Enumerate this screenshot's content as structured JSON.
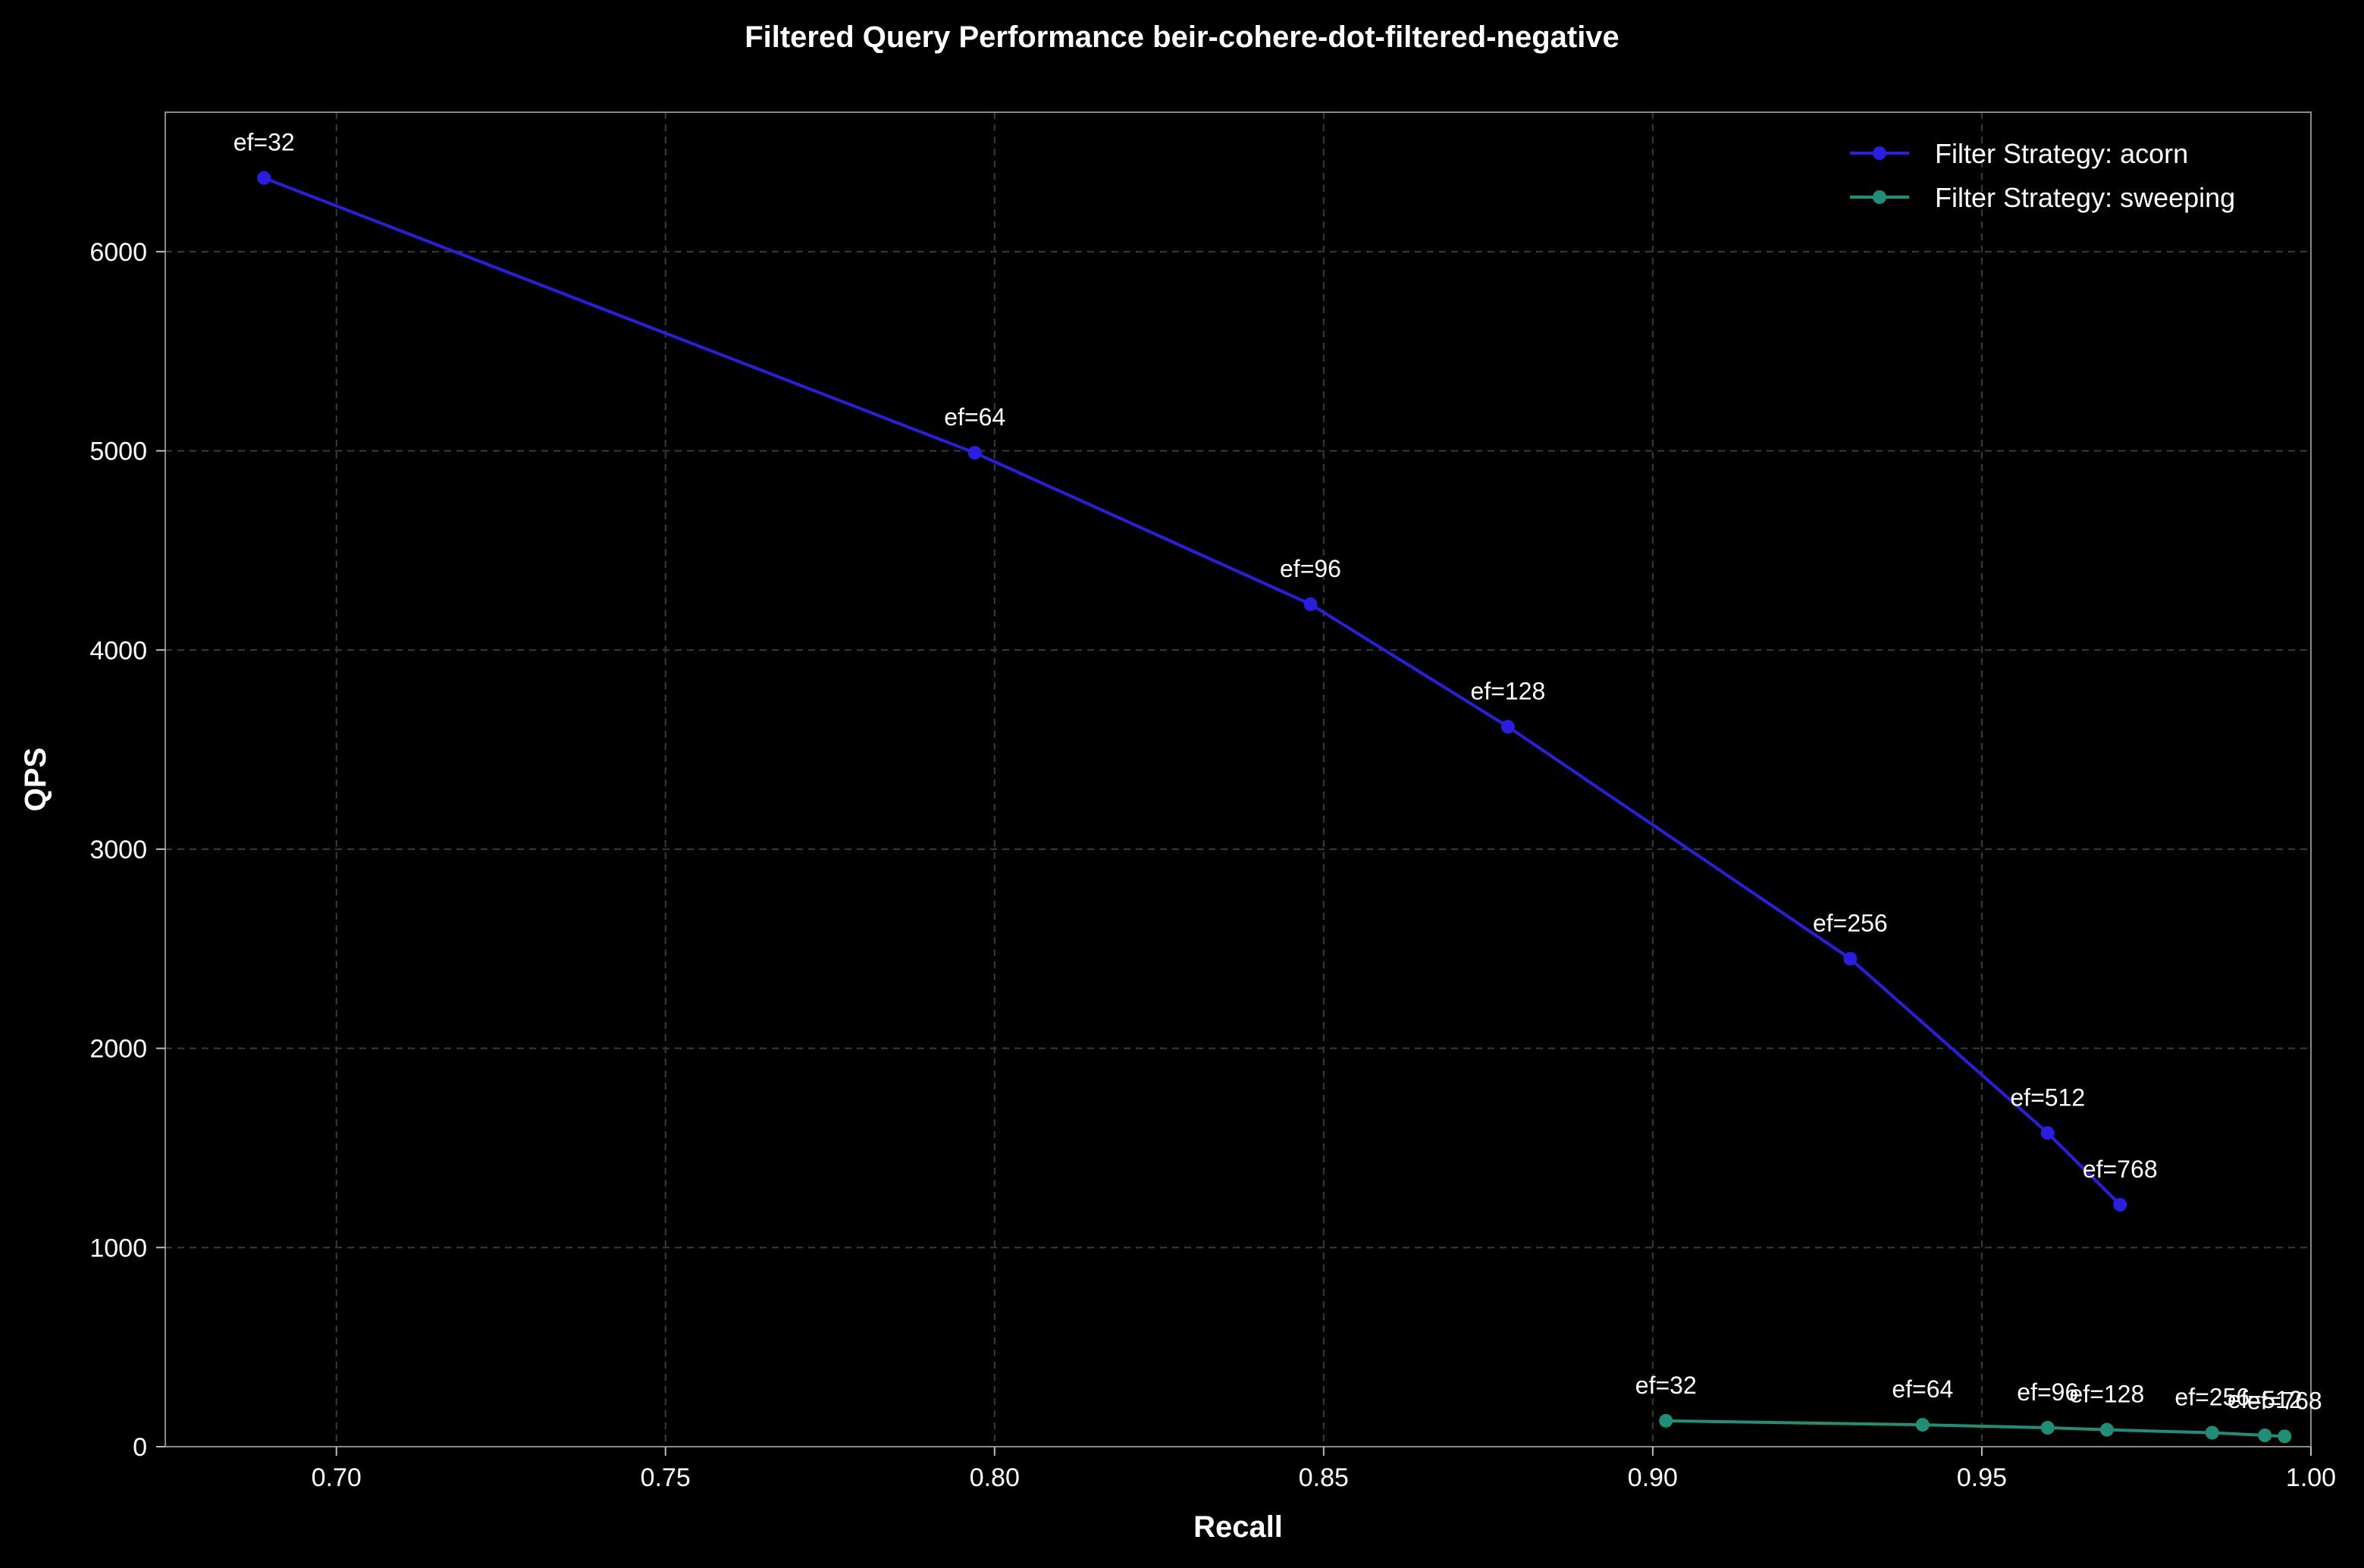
{
  "chart_data": {
    "type": "line",
    "title": "Filtered Query Performance beir-cohere-dot-filtered-negative",
    "xlabel": "Recall",
    "ylabel": "QPS",
    "xlim": [
      0.674,
      1.0
    ],
    "ylim": [
      0,
      6700
    ],
    "xticks": [
      0.7,
      0.75,
      0.8,
      0.85,
      0.9,
      0.95,
      1.0
    ],
    "xtick_labels": [
      "0.70",
      "0.75",
      "0.80",
      "0.85",
      "0.90",
      "0.95",
      "1.00"
    ],
    "yticks": [
      0,
      1000,
      2000,
      3000,
      4000,
      5000,
      6000
    ],
    "ytick_labels": [
      "0",
      "1000",
      "2000",
      "3000",
      "4000",
      "5000",
      "6000"
    ],
    "grid": true,
    "legend_position": "top-right",
    "background": "#000000",
    "series": [
      {
        "name": "Filter Strategy: acorn",
        "color": "#2a1ee0",
        "points": [
          {
            "x": 0.689,
            "y": 6370,
            "label": "ef=32"
          },
          {
            "x": 0.797,
            "y": 4990,
            "label": "ef=64"
          },
          {
            "x": 0.848,
            "y": 4230,
            "label": "ef=96"
          },
          {
            "x": 0.878,
            "y": 3615,
            "label": "ef=128"
          },
          {
            "x": 0.93,
            "y": 2450,
            "label": "ef=256"
          },
          {
            "x": 0.96,
            "y": 1575,
            "label": "ef=512"
          },
          {
            "x": 0.971,
            "y": 1215,
            "label": "ef=768"
          }
        ]
      },
      {
        "name": "Filter Strategy: sweeping",
        "color": "#1f8f78",
        "points": [
          {
            "x": 0.902,
            "y": 130,
            "label": "ef=32"
          },
          {
            "x": 0.941,
            "y": 110,
            "label": "ef=64"
          },
          {
            "x": 0.96,
            "y": 95,
            "label": "ef=96"
          },
          {
            "x": 0.969,
            "y": 85,
            "label": "ef=128"
          },
          {
            "x": 0.985,
            "y": 70,
            "label": "ef=256"
          },
          {
            "x": 0.993,
            "y": 57,
            "label": "ef=512"
          },
          {
            "x": 0.996,
            "y": 52,
            "label": "ef=768"
          }
        ]
      }
    ]
  }
}
